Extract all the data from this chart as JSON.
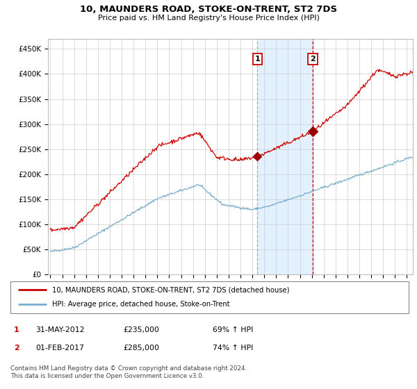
{
  "title": "10, MAUNDERS ROAD, STOKE-ON-TRENT, ST2 7DS",
  "subtitle": "Price paid vs. HM Land Registry's House Price Index (HPI)",
  "ylabel_ticks": [
    "£0",
    "£50K",
    "£100K",
    "£150K",
    "£200K",
    "£250K",
    "£300K",
    "£350K",
    "£400K",
    "£450K"
  ],
  "ytick_values": [
    0,
    50000,
    100000,
    150000,
    200000,
    250000,
    300000,
    350000,
    400000,
    450000
  ],
  "ylim": [
    0,
    470000
  ],
  "xlim_start": 1994.8,
  "xlim_end": 2025.5,
  "sale1_date": 2012.42,
  "sale1_price": 235000,
  "sale1_label": "1",
  "sale2_date": 2017.08,
  "sale2_price": 285000,
  "sale2_label": "2",
  "red_line_color": "#cc0000",
  "blue_line_color": "#7aadcc",
  "shaded_color": "#ddeeff",
  "vline1_color": "#aaaaaa",
  "vline1_style": "--",
  "vline2_color": "#cc0000",
  "vline2_style": "--",
  "marker_color": "#990000",
  "legend_label1": "10, MAUNDERS ROAD, STOKE-ON-TRENT, ST2 7DS (detached house)",
  "legend_label2": "HPI: Average price, detached house, Stoke-on-Trent",
  "note1_num": "1",
  "note1_date": "31-MAY-2012",
  "note1_price": "£235,000",
  "note1_hpi": "69% ↑ HPI",
  "note2_num": "2",
  "note2_date": "01-FEB-2017",
  "note2_price": "£285,000",
  "note2_hpi": "74% ↑ HPI",
  "footer": "Contains HM Land Registry data © Crown copyright and database right 2024.\nThis data is licensed under the Open Government Licence v3.0.",
  "background_color": "#ffffff",
  "grid_color": "#cccccc"
}
